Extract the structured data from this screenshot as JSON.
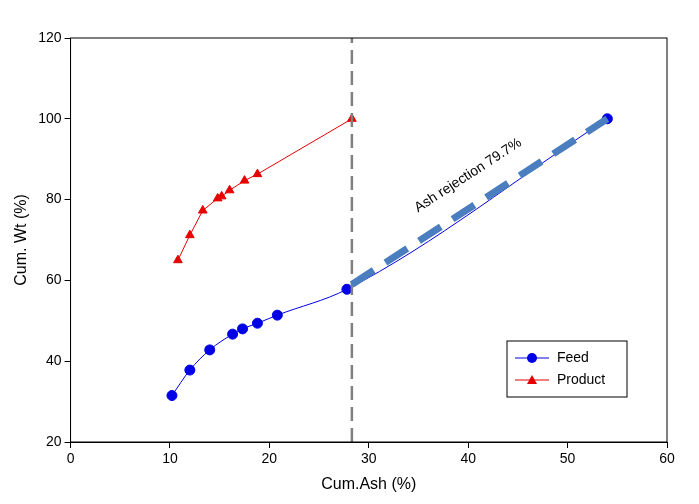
{
  "chart_data": {
    "type": "scatter",
    "x_label": "Cum.Ash (%)",
    "y_label": "Cum. Wt (%)",
    "xlim": [
      0,
      60
    ],
    "xticks": [
      0,
      10,
      20,
      30,
      40,
      50,
      60
    ],
    "ylim": [
      20,
      120
    ],
    "yticks": [
      20,
      40,
      60,
      80,
      100,
      120
    ],
    "grid": false,
    "legend": "lower right",
    "series": [
      {
        "name": "Feed",
        "color": "#0000e6",
        "marker": "circle",
        "line_style": "smooth",
        "x": [
          10.2,
          12.0,
          14.0,
          16.3,
          17.3,
          18.8,
          20.8,
          27.8,
          54.0
        ],
        "values": [
          31.5,
          37.8,
          42.8,
          46.7,
          48.0,
          49.4,
          51.4,
          57.8,
          100.0
        ]
      },
      {
        "name": "Product",
        "color": "#e60000",
        "marker": "triangle",
        "line_style": "solid",
        "x": [
          10.8,
          12.0,
          13.3,
          14.8,
          15.2,
          16.0,
          17.5,
          18.8,
          28.3
        ],
        "values": [
          65.0,
          71.2,
          77.3,
          80.3,
          80.8,
          82.3,
          84.7,
          86.3,
          100.0
        ]
      }
    ],
    "annotations": [
      {
        "type": "vline",
        "x": 28.3,
        "color": "#808080",
        "line_style": "dashed"
      },
      {
        "type": "line",
        "x": [
          28.3,
          54.0
        ],
        "y": [
          59.0,
          100.0
        ],
        "color": "#4a7ebf",
        "line_style": "dashed"
      },
      {
        "type": "text",
        "text": "Ash rejection 79.7%",
        "x": 40.0,
        "y": 86.0
      }
    ]
  }
}
